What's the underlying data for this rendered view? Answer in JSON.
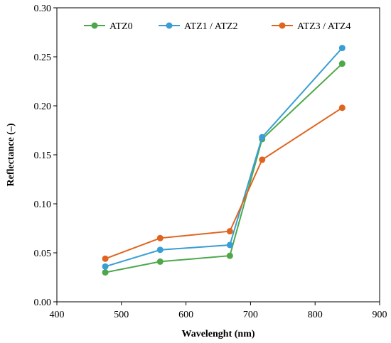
{
  "chart_data": {
    "type": "line",
    "title": "",
    "xlabel": "Wavelenght (nm)",
    "ylabel": "Reflectance (–)",
    "xlim": [
      400,
      900
    ],
    "ylim": [
      0,
      0.3
    ],
    "x_ticks": [
      "400",
      "500",
      "600",
      "700",
      "800",
      "900"
    ],
    "y_ticks": [
      "0.00",
      "0.05",
      "0.10",
      "0.15",
      "0.20",
      "0.25",
      "0.30"
    ],
    "grid": false,
    "legend_position": "top",
    "x": [
      475,
      560,
      668,
      718,
      842
    ],
    "series": [
      {
        "name": "ATZ0",
        "color": "#4ea84a",
        "values": [
          0.03,
          0.041,
          0.047,
          0.166,
          0.243
        ]
      },
      {
        "name": "ATZ1 / ATZ2",
        "color": "#3a9ed4",
        "values": [
          0.036,
          0.053,
          0.058,
          0.168,
          0.259
        ]
      },
      {
        "name": "ATZ3 / ATZ4",
        "color": "#e0641e",
        "values": [
          0.044,
          0.065,
          0.072,
          0.145,
          0.198
        ]
      }
    ]
  }
}
